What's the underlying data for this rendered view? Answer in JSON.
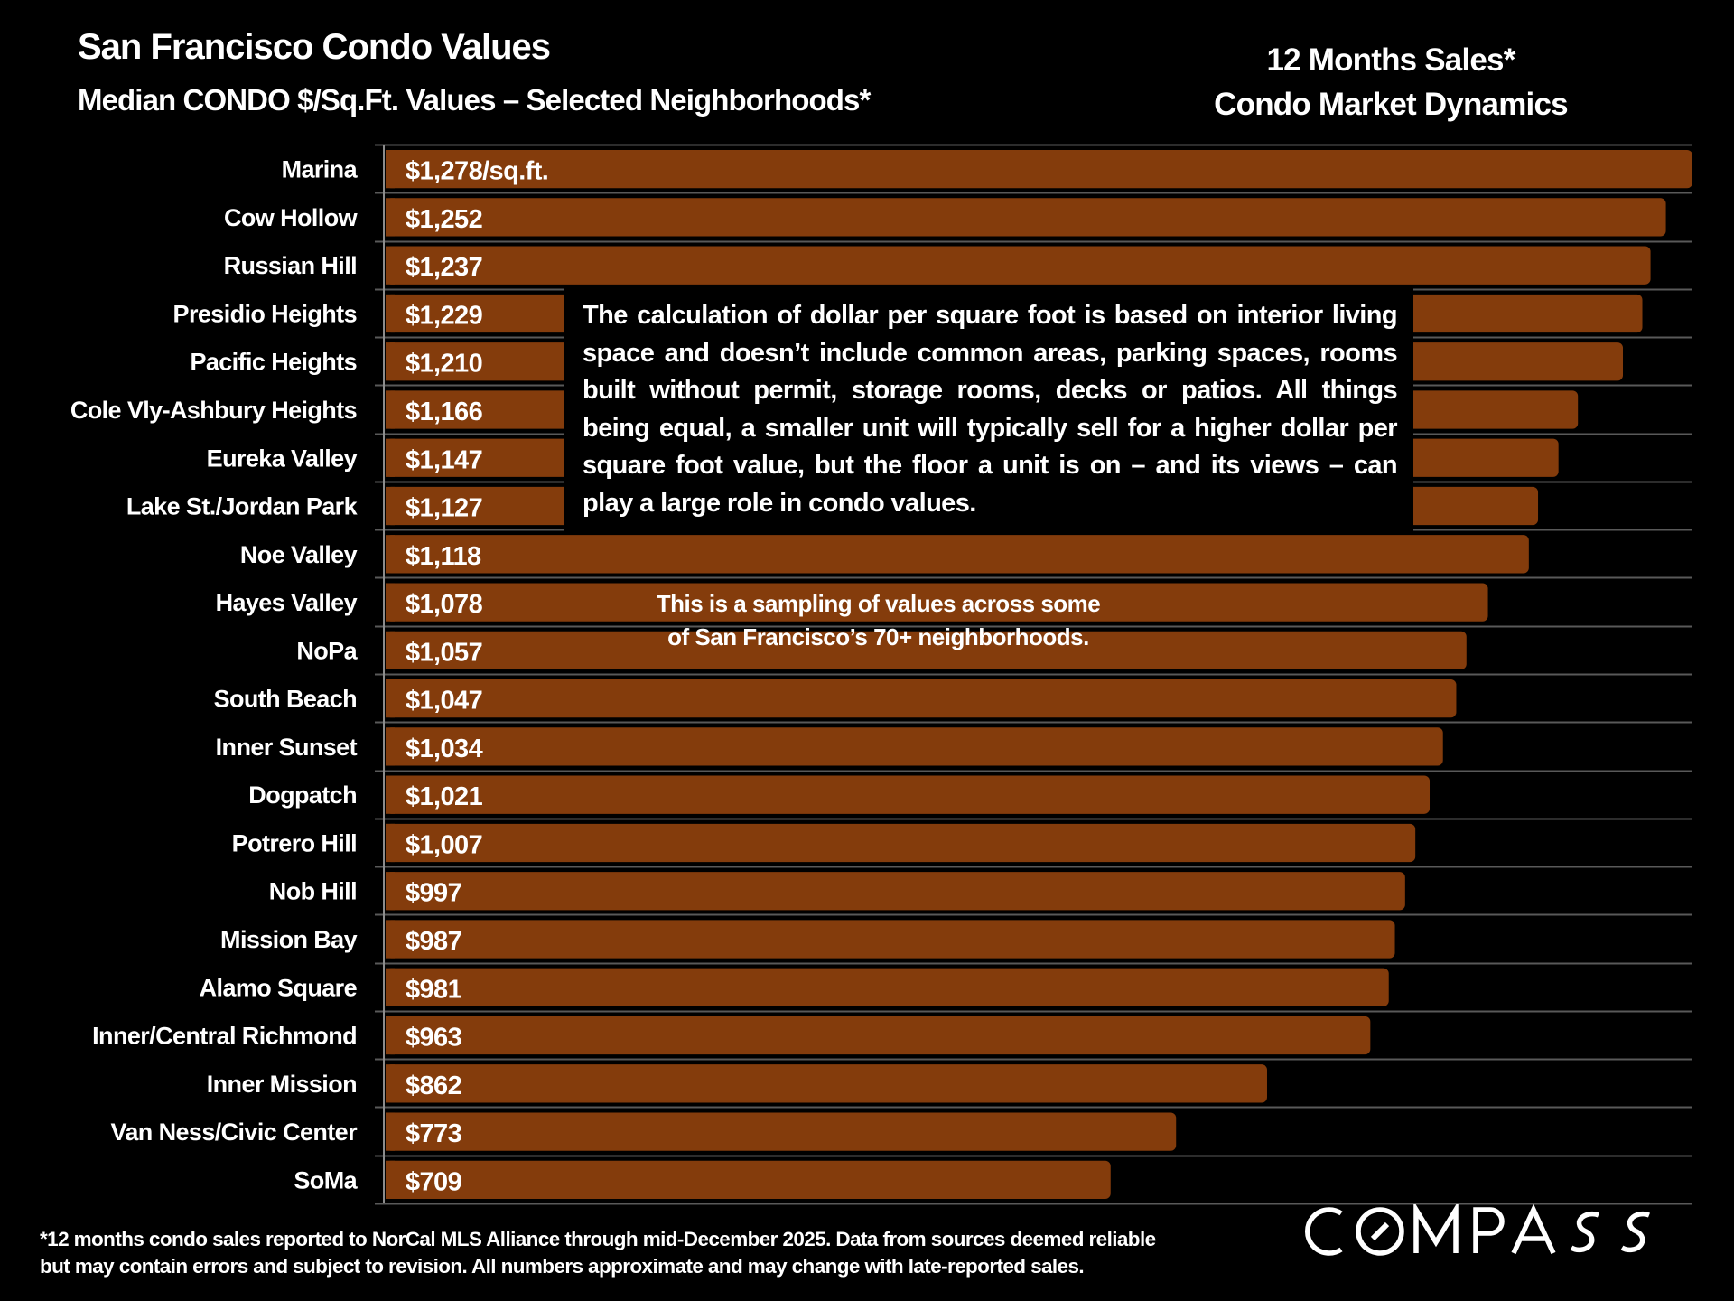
{
  "header": {
    "title": "San Francisco Condo Values",
    "subtitle": "Median CONDO $/Sq.Ft. Values – Selected Neighborhoods*",
    "right_line1": "12 Months Sales*",
    "right_line2": "Condo Market Dynamics"
  },
  "annotation": {
    "text": "The calculation of dollar per square foot is based on interior living space and doesn’t include common areas, parking spaces, rooms built without permit, storage rooms, decks or patios. All things being equal, a smaller unit will typically sell for a higher dollar per square foot value, but the floor a unit is on – and its views – can play a large role in condo values."
  },
  "sampling_note": {
    "line1": "This is a sampling of values across some",
    "line2": "of San Francisco’s 70+ neighborhoods."
  },
  "footer": {
    "line1": "*12 months condo sales reported to NorCal MLS Alliance through mid-December 2025. Data from sources deemed reliable",
    "line2": "but may contain errors and subject to revision. All numbers approximate and may change with late-reported sales."
  },
  "logo": {
    "text": "COMPASS",
    "icon": "compass-logo-icon"
  },
  "colors": {
    "bar": "#843C0C",
    "background": "#000000",
    "text": "#FFFFFF",
    "gridline": "#595959"
  },
  "chart_data": {
    "type": "bar",
    "orientation": "horizontal",
    "title": "San Francisco Condo Values",
    "subtitle": "Median CONDO $/Sq.Ft. Values – Selected Neighborhoods*",
    "xlabel": "",
    "ylabel": "",
    "unit": "$/sq.ft.",
    "xlim": [
      0,
      1280
    ],
    "grid": true,
    "legend": "none",
    "categories": [
      "Marina",
      "Cow Hollow",
      "Russian Hill",
      "Presidio Heights",
      "Pacific Heights",
      "Cole Vly-Ashbury Heights",
      "Eureka Valley",
      "Lake St./Jordan Park",
      "Noe Valley",
      "Hayes Valley",
      "NoPa",
      "South Beach",
      "Inner Sunset",
      "Dogpatch",
      "Potrero Hill",
      "Nob Hill",
      "Mission Bay",
      "Alamo Square",
      "Inner/Central Richmond",
      "Inner Mission",
      "Van Ness/Civic Center",
      "SoMa"
    ],
    "values": [
      1278,
      1252,
      1237,
      1229,
      1210,
      1166,
      1147,
      1127,
      1118,
      1078,
      1057,
      1047,
      1034,
      1021,
      1007,
      997,
      987,
      981,
      963,
      862,
      773,
      709
    ],
    "data_labels": [
      "$1,278/sq.ft.",
      "$1,252",
      "$1,237",
      "$1,229",
      "$1,210",
      "$1,166",
      "$1,147",
      "$1,127",
      "$1,118",
      "$1,078",
      "$1,057",
      "$1,047",
      "$1,034",
      "$1,021",
      "$1,007",
      "$997",
      "$987",
      "$981",
      "$963",
      "$862",
      "$773",
      "$709"
    ]
  }
}
